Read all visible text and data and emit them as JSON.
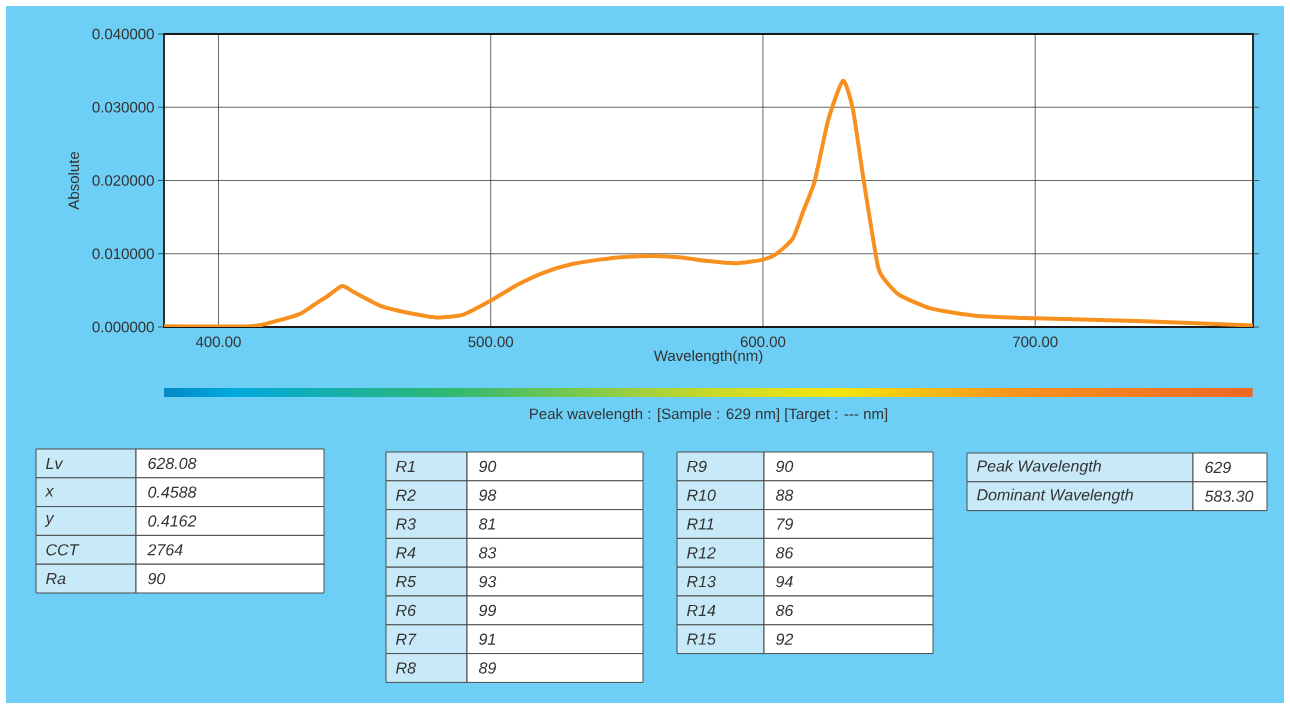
{
  "chart_data": [
    {
      "type": "line",
      "xlabel": "Wavelength(nm)",
      "ylabel": "Absolute",
      "grid": true,
      "color": "#f7901e",
      "x": [
        380,
        412,
        420,
        430,
        435,
        440,
        445.5,
        450,
        460,
        470,
        480,
        490,
        500,
        510,
        520,
        530,
        540,
        550,
        560,
        570,
        580,
        590,
        600,
        605,
        611,
        615,
        619,
        624,
        629.4,
        633,
        637,
        642,
        644,
        650,
        662,
        679,
        700,
        740,
        780
      ],
      "values": [
        0.0001,
        0.0001,
        0.0007,
        0.0018,
        0.003,
        0.0042,
        0.0056,
        0.0047,
        0.0028,
        0.0019,
        0.0013,
        0.0017,
        0.0036,
        0.0058,
        0.0075,
        0.0086,
        0.0092,
        0.0096,
        0.0097,
        0.0095,
        0.009,
        0.0087,
        0.0092,
        0.01,
        0.0121,
        0.016,
        0.0199,
        0.0283,
        0.0336,
        0.0298,
        0.02,
        0.0087,
        0.0068,
        0.0044,
        0.0025,
        0.0015,
        0.0012,
        0.0008,
        0.0002
      ],
      "xlim": [
        380,
        780
      ],
      "ylim": [
        0,
        0.04
      ],
      "xticks": [
        {
          "value": 400,
          "label": "400.00"
        },
        {
          "value": 500,
          "label": "500.00"
        },
        {
          "value": 600,
          "label": "600.00"
        },
        {
          "value": 700,
          "label": "700.00"
        }
      ],
      "yticks": [
        {
          "value": 0,
          "label": "0.000000"
        },
        {
          "value": 0.01,
          "label": "0.010000"
        },
        {
          "value": 0.02,
          "label": "0.020000"
        },
        {
          "value": 0.03,
          "label": "0.030000"
        },
        {
          "value": 0.04,
          "label": "0.040000"
        }
      ],
      "annotations": [
        "Peak wavelength : [Sample : 629 nm] [Target : --- nm]"
      ]
    },
    {
      "type": "other",
      "annotations": [
        "Lv",
        "628.08",
        "x",
        "0.4588",
        "y",
        "0.4162",
        "CCT",
        "2764",
        "Ra",
        "90"
      ]
    },
    {
      "type": "other",
      "annotations": [
        "R1",
        "90",
        "R2",
        "98",
        "R3",
        "81",
        "R4",
        "83",
        "R5",
        "93",
        "R6",
        "99",
        "R7",
        "91",
        "R8",
        "89"
      ]
    },
    {
      "type": "other",
      "annotations": [
        "R9",
        "90",
        "R10",
        "88",
        "R11",
        "79",
        "R12",
        "86",
        "R13",
        "94",
        "R14",
        "86",
        "R15",
        "92"
      ]
    },
    {
      "type": "other",
      "annotations": [
        "Peak Wavelength",
        "629",
        "Dominant Wavelength",
        "583.30"
      ]
    }
  ]
}
